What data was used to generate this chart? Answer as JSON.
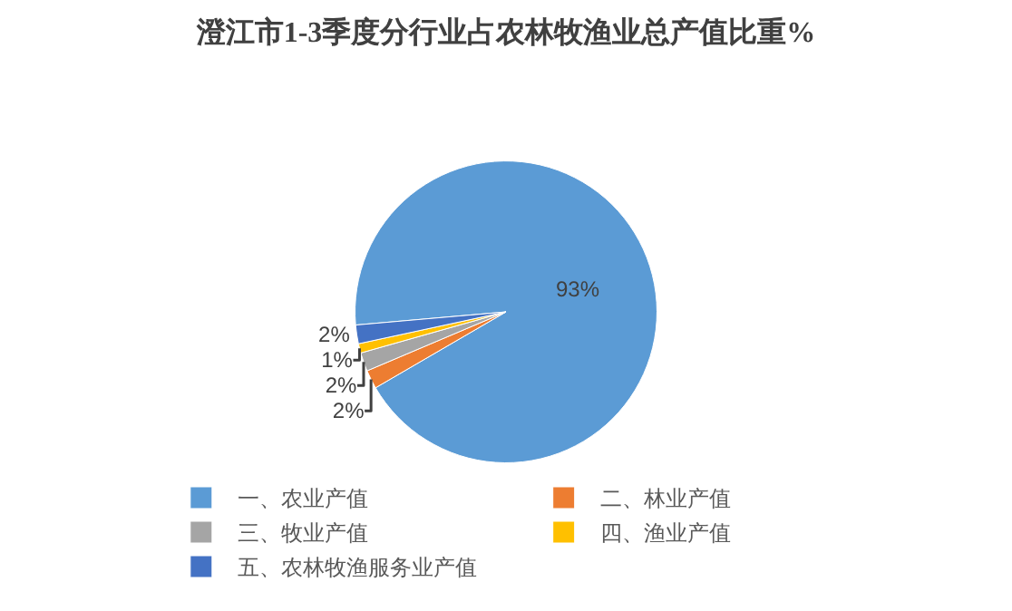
{
  "chart_data": {
    "type": "pie",
    "title": "澄江市1-3季度分行业占农林牧渔业总产值比重%",
    "categories": [
      "一、农业产值",
      "二、林业产值",
      "三、牧业产值",
      "四、渔业产值",
      "五、农林牧渔服务业产值"
    ],
    "values": [
      93,
      2,
      2,
      1,
      2
    ],
    "colors": [
      "#5b9bd5",
      "#ed7d31",
      "#a5a5a5",
      "#ffc000",
      "#4472c4"
    ],
    "value_labels": [
      "93%",
      "2%",
      "2%",
      "1%",
      "2%"
    ],
    "legend": "bottom"
  }
}
